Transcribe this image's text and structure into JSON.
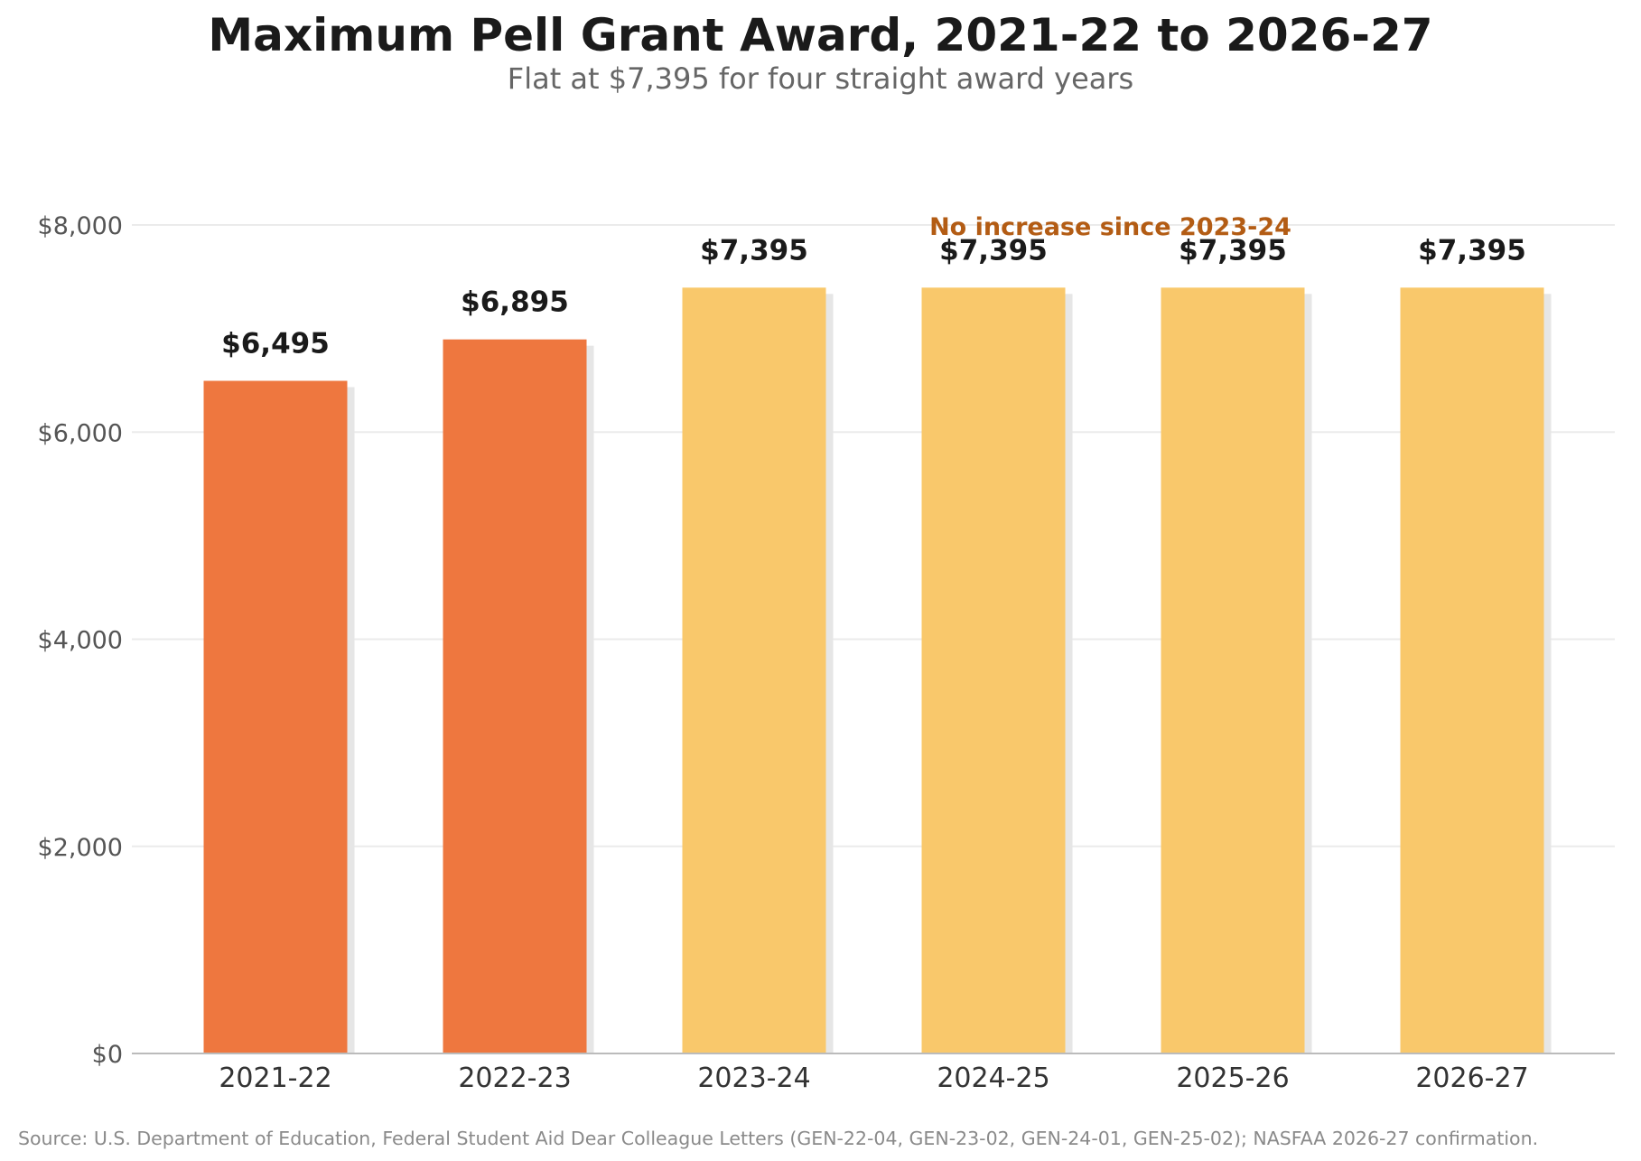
{
  "title": "Maximum Pell Grant Award, 2021-22 to 2026-27",
  "subtitle": "Flat at $7,395 for four straight award years",
  "source": "Source: U.S. Department of Education, Federal Student Aid Dear Colleague Letters (GEN-22-04, GEN-23-02, GEN-24-01, GEN-25-02); NASFAA 2026-27 confirmation.",
  "chart_data": {
    "type": "bar",
    "title": "Maximum Pell Grant Award, 2021-22 to 2026-27",
    "subtitle": "Flat at $7,395 for four straight award years",
    "categories": [
      "2021-22",
      "2022-23",
      "2023-24",
      "2024-25",
      "2025-26",
      "2026-27"
    ],
    "values": [
      6495,
      6895,
      7395,
      7395,
      7395,
      7395
    ],
    "data_labels": [
      "$6,495",
      "$6,895",
      "$7,395",
      "$7,395",
      "$7,395",
      "$7,395"
    ],
    "bar_colors": [
      "#EE773F",
      "#EE773F",
      "#F9C86B",
      "#F9C86B",
      "#F9C86B",
      "#F9C86B"
    ],
    "ylim": [
      0,
      8000
    ],
    "yticks": [
      0,
      2000,
      4000,
      6000,
      8000
    ],
    "ytick_labels": [
      "$0",
      "$2,000",
      "$4,000",
      "$6,000",
      "$8,000"
    ],
    "xlabel": "",
    "ylabel": "",
    "grid": "horizontal",
    "annotation": {
      "text": "No increase since 2023-24",
      "color": "#B35C14"
    }
  }
}
